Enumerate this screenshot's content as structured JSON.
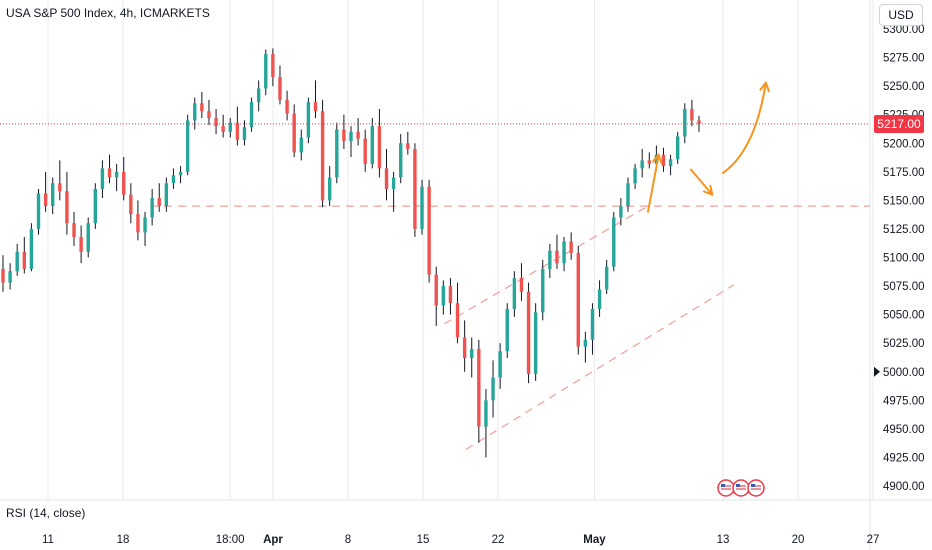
{
  "header": {
    "title": "USA S&P 500 Index, 4h, ICMARKETS",
    "currency": "USD"
  },
  "indicator": {
    "label": "RSI (14, close)"
  },
  "last_price": {
    "value": "5217.00",
    "color": "#f23645"
  },
  "colors": {
    "up": "#26a69a",
    "down": "#ef5350",
    "wick": "#131722",
    "grid": "#e6e8ee",
    "channel": "#f4a39c",
    "arrow": "#f7941d"
  },
  "chart_data": {
    "type": "candlestick",
    "title": "USA S&P 500 Index, 4h, ICMARKETS",
    "y_ticks": [
      4900,
      4925,
      4950,
      4975,
      5000,
      5025,
      5050,
      5075,
      5100,
      5125,
      5150,
      5175,
      5200,
      5225,
      5250,
      5275,
      5300
    ],
    "y_tick_labels": [
      "4900.00",
      "4925.00",
      "4950.00",
      "4975.00",
      "5000.00",
      "5025.00",
      "5050.00",
      "5075.00",
      "5100.00",
      "5125.00",
      "5150.00",
      "5175.00",
      "5200.00",
      "5225.00",
      "5250.00",
      "5275.00",
      "5300.00"
    ],
    "ylim": [
      4893,
      5305
    ],
    "x_tick_labels": [
      "11",
      "18",
      "18:00",
      "Apr",
      "8",
      "15",
      "22",
      "May",
      "13",
      "20",
      "27"
    ],
    "x_tick_dates": [
      "2024-03-11",
      "2024-03-18",
      "2024-03-28",
      "2024-04-01",
      "2024-04-08",
      "2024-04-15",
      "2024-04-22",
      "2024-05-01",
      "2024-05-13",
      "2024-05-20",
      "2024-05-27"
    ],
    "support_level": 5145,
    "last_close": 5217,
    "channel": [
      {
        "name": "",
        "from": {
          "date": "2024-04-17",
          "value": 5042
        },
        "to": {
          "date": "2024-05-06",
          "value": 5145
        }
      },
      {
        "name": "",
        "from": {
          "date": "2024-04-19",
          "value": 4932
        },
        "to": {
          "date": "2024-05-14",
          "value": 5076
        }
      }
    ],
    "projection_arrows": [
      {
        "from": {
          "date": "2024-05-06",
          "value": 5140
        },
        "to": {
          "date": "2024-05-07",
          "value": 5190
        }
      },
      {
        "from": {
          "date": "2024-05-10",
          "value": 5177
        },
        "to": {
          "date": "2024-05-12",
          "value": 5155
        }
      },
      {
        "from": {
          "date": "2024-05-13",
          "value": 5174
        },
        "to": {
          "date": "2024-05-17",
          "value": 5253
        }
      }
    ],
    "ohlc": [
      {
        "o": 5090,
        "h": 5102,
        "l": 5070,
        "c": 5078
      },
      {
        "o": 5078,
        "h": 5095,
        "l": 5072,
        "c": 5088
      },
      {
        "o": 5088,
        "h": 5112,
        "l": 5084,
        "c": 5105
      },
      {
        "o": 5105,
        "h": 5118,
        "l": 5086,
        "c": 5090
      },
      {
        "o": 5090,
        "h": 5130,
        "l": 5088,
        "c": 5125
      },
      {
        "o": 5125,
        "h": 5160,
        "l": 5120,
        "c": 5156
      },
      {
        "o": 5156,
        "h": 5175,
        "l": 5140,
        "c": 5145
      },
      {
        "o": 5145,
        "h": 5170,
        "l": 5138,
        "c": 5165
      },
      {
        "o": 5165,
        "h": 5185,
        "l": 5150,
        "c": 5158
      },
      {
        "o": 5158,
        "h": 5175,
        "l": 5120,
        "c": 5130
      },
      {
        "o": 5130,
        "h": 5140,
        "l": 5110,
        "c": 5118
      },
      {
        "o": 5118,
        "h": 5128,
        "l": 5095,
        "c": 5105
      },
      {
        "o": 5105,
        "h": 5135,
        "l": 5100,
        "c": 5130
      },
      {
        "o": 5130,
        "h": 5165,
        "l": 5125,
        "c": 5160
      },
      {
        "o": 5160,
        "h": 5185,
        "l": 5152,
        "c": 5178
      },
      {
        "o": 5178,
        "h": 5190,
        "l": 5165,
        "c": 5170
      },
      {
        "o": 5170,
        "h": 5182,
        "l": 5158,
        "c": 5175
      },
      {
        "o": 5175,
        "h": 5188,
        "l": 5150,
        "c": 5155
      },
      {
        "o": 5155,
        "h": 5165,
        "l": 5130,
        "c": 5138
      },
      {
        "o": 5138,
        "h": 5150,
        "l": 5115,
        "c": 5122
      },
      {
        "o": 5122,
        "h": 5140,
        "l": 5110,
        "c": 5135
      },
      {
        "o": 5135,
        "h": 5160,
        "l": 5128,
        "c": 5152
      },
      {
        "o": 5152,
        "h": 5165,
        "l": 5140,
        "c": 5145
      },
      {
        "o": 5145,
        "h": 5170,
        "l": 5140,
        "c": 5165
      },
      {
        "o": 5165,
        "h": 5178,
        "l": 5160,
        "c": 5172
      },
      {
        "o": 5172,
        "h": 5180,
        "l": 5165,
        "c": 5175
      },
      {
        "o": 5175,
        "h": 5225,
        "l": 5172,
        "c": 5220
      },
      {
        "o": 5220,
        "h": 5240,
        "l": 5212,
        "c": 5235
      },
      {
        "o": 5235,
        "h": 5245,
        "l": 5222,
        "c": 5228
      },
      {
        "o": 5228,
        "h": 5238,
        "l": 5216,
        "c": 5222
      },
      {
        "o": 5222,
        "h": 5230,
        "l": 5208,
        "c": 5215
      },
      {
        "o": 5215,
        "h": 5225,
        "l": 5205,
        "c": 5210
      },
      {
        "o": 5210,
        "h": 5222,
        "l": 5205,
        "c": 5218
      },
      {
        "o": 5218,
        "h": 5232,
        "l": 5198,
        "c": 5203
      },
      {
        "o": 5203,
        "h": 5220,
        "l": 5198,
        "c": 5214
      },
      {
        "o": 5214,
        "h": 5240,
        "l": 5210,
        "c": 5236
      },
      {
        "o": 5236,
        "h": 5255,
        "l": 5228,
        "c": 5248
      },
      {
        "o": 5248,
        "h": 5282,
        "l": 5242,
        "c": 5278
      },
      {
        "o": 5278,
        "h": 5283,
        "l": 5250,
        "c": 5258
      },
      {
        "o": 5258,
        "h": 5268,
        "l": 5234,
        "c": 5238
      },
      {
        "o": 5238,
        "h": 5246,
        "l": 5220,
        "c": 5226
      },
      {
        "o": 5226,
        "h": 5234,
        "l": 5188,
        "c": 5192
      },
      {
        "o": 5192,
        "h": 5212,
        "l": 5185,
        "c": 5205
      },
      {
        "o": 5205,
        "h": 5240,
        "l": 5200,
        "c": 5236
      },
      {
        "o": 5236,
        "h": 5255,
        "l": 5222,
        "c": 5228
      },
      {
        "o": 5228,
        "h": 5238,
        "l": 5144,
        "c": 5150
      },
      {
        "o": 5150,
        "h": 5180,
        "l": 5145,
        "c": 5170
      },
      {
        "o": 5170,
        "h": 5218,
        "l": 5165,
        "c": 5212
      },
      {
        "o": 5212,
        "h": 5225,
        "l": 5195,
        "c": 5202
      },
      {
        "o": 5202,
        "h": 5215,
        "l": 5188,
        "c": 5210
      },
      {
        "o": 5210,
        "h": 5222,
        "l": 5198,
        "c": 5204
      },
      {
        "o": 5204,
        "h": 5212,
        "l": 5175,
        "c": 5182
      },
      {
        "o": 5182,
        "h": 5222,
        "l": 5178,
        "c": 5215
      },
      {
        "o": 5215,
        "h": 5230,
        "l": 5170,
        "c": 5178
      },
      {
        "o": 5178,
        "h": 5195,
        "l": 5150,
        "c": 5160
      },
      {
        "o": 5160,
        "h": 5175,
        "l": 5140,
        "c": 5170
      },
      {
        "o": 5170,
        "h": 5208,
        "l": 5165,
        "c": 5200
      },
      {
        "o": 5200,
        "h": 5210,
        "l": 5190,
        "c": 5195
      },
      {
        "o": 5195,
        "h": 5200,
        "l": 5118,
        "c": 5125
      },
      {
        "o": 5125,
        "h": 5168,
        "l": 5120,
        "c": 5162
      },
      {
        "o": 5162,
        "h": 5168,
        "l": 5078,
        "c": 5085
      },
      {
        "o": 5085,
        "h": 5092,
        "l": 5040,
        "c": 5058
      },
      {
        "o": 5058,
        "h": 5080,
        "l": 5050,
        "c": 5075
      },
      {
        "o": 5075,
        "h": 5082,
        "l": 5050,
        "c": 5060
      },
      {
        "o": 5060,
        "h": 5078,
        "l": 5025,
        "c": 5030
      },
      {
        "o": 5030,
        "h": 5045,
        "l": 5000,
        "c": 5012
      },
      {
        "o": 5012,
        "h": 5030,
        "l": 4995,
        "c": 5020
      },
      {
        "o": 5020,
        "h": 5028,
        "l": 4938,
        "c": 4952
      },
      {
        "o": 4952,
        "h": 4985,
        "l": 4925,
        "c": 4975
      },
      {
        "o": 4975,
        "h": 5010,
        "l": 4960,
        "c": 4995
      },
      {
        "o": 4995,
        "h": 5025,
        "l": 4985,
        "c": 5018
      },
      {
        "o": 5018,
        "h": 5060,
        "l": 5012,
        "c": 5055
      },
      {
        "o": 5055,
        "h": 5088,
        "l": 5048,
        "c": 5082
      },
      {
        "o": 5082,
        "h": 5095,
        "l": 5062,
        "c": 5070
      },
      {
        "o": 5070,
        "h": 5078,
        "l": 4990,
        "c": 4998
      },
      {
        "o": 4998,
        "h": 5060,
        "l": 4992,
        "c": 5052
      },
      {
        "o": 5052,
        "h": 5098,
        "l": 5045,
        "c": 5090
      },
      {
        "o": 5090,
        "h": 5112,
        "l": 5082,
        "c": 5106
      },
      {
        "o": 5106,
        "h": 5120,
        "l": 5090,
        "c": 5095
      },
      {
        "o": 5095,
        "h": 5118,
        "l": 5088,
        "c": 5114
      },
      {
        "o": 5114,
        "h": 5122,
        "l": 5098,
        "c": 5104
      },
      {
        "o": 5104,
        "h": 5110,
        "l": 5015,
        "c": 5022
      },
      {
        "o": 5022,
        "h": 5035,
        "l": 5008,
        "c": 5028
      },
      {
        "o": 5028,
        "h": 5060,
        "l": 5015,
        "c": 5055
      },
      {
        "o": 5055,
        "h": 5080,
        "l": 5048,
        "c": 5072
      },
      {
        "o": 5072,
        "h": 5098,
        "l": 5068,
        "c": 5092
      },
      {
        "o": 5092,
        "h": 5140,
        "l": 5088,
        "c": 5135
      },
      {
        "o": 5135,
        "h": 5152,
        "l": 5128,
        "c": 5145
      },
      {
        "o": 5145,
        "h": 5170,
        "l": 5140,
        "c": 5165
      },
      {
        "o": 5165,
        "h": 5182,
        "l": 5160,
        "c": 5178
      },
      {
        "o": 5178,
        "h": 5195,
        "l": 5170,
        "c": 5185
      },
      {
        "o": 5185,
        "h": 5192,
        "l": 5178,
        "c": 5182
      },
      {
        "o": 5182,
        "h": 5198,
        "l": 5176,
        "c": 5190
      },
      {
        "o": 5190,
        "h": 5196,
        "l": 5175,
        "c": 5180
      },
      {
        "o": 5180,
        "h": 5190,
        "l": 5172,
        "c": 5186
      },
      {
        "o": 5186,
        "h": 5210,
        "l": 5182,
        "c": 5206
      },
      {
        "o": 5206,
        "h": 5235,
        "l": 5200,
        "c": 5230
      },
      {
        "o": 5230,
        "h": 5238,
        "l": 5215,
        "c": 5220
      },
      {
        "o": 5220,
        "h": 5224,
        "l": 5210,
        "c": 5217
      }
    ]
  }
}
